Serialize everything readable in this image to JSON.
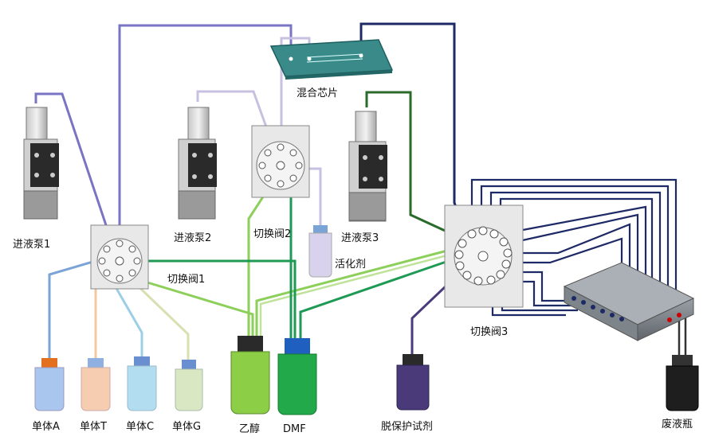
{
  "labels": {
    "chip": "混合芯片",
    "pump1": "进液泵1",
    "pump2": "进液泵2",
    "pump3": "进液泵3",
    "valve1": "切换阀1",
    "valve2": "切换阀2",
    "valve3": "切换阀3",
    "activator": "活化剂",
    "monomerA": "单体A",
    "monomerT": "单体T",
    "monomerC": "单体C",
    "monomerG": "单体G",
    "ethanol": "乙醇",
    "dmf": "DMF",
    "deprotect": "脱保护试剂",
    "waste": "废液瓶"
  },
  "colors": {
    "pump1_line": "#7a74c4",
    "pump2_line": "#c8c0e0",
    "pump3_line": "#2a6a2a",
    "valve3_chip_line": "#1e2a66",
    "ethanol_line": "#8ccf5a",
    "dmf_line": "#1f9a55",
    "deprotect_line": "#4a3c7a",
    "monomerA_line": "#7aa3d6",
    "monomerT_line": "#f0c8a0",
    "monomerC_line": "#9ccfe6",
    "monomerG_line": "#d6e0b0",
    "array_line": "#1e2a66",
    "bottle_ethanol": "#8ccf46",
    "bottle_dmf": "#22aa4a",
    "bottle_deprotect": "#4a3a7a",
    "bottle_waste": "#1e1e1e",
    "bottle_monomerA": "#a9c6ee",
    "bottle_monomerT": "#f6cdb0",
    "bottle_monomerC": "#b2dcf0",
    "bottle_monomerG": "#d9e8c2",
    "bottle_activator": "#d8d2ec"
  }
}
